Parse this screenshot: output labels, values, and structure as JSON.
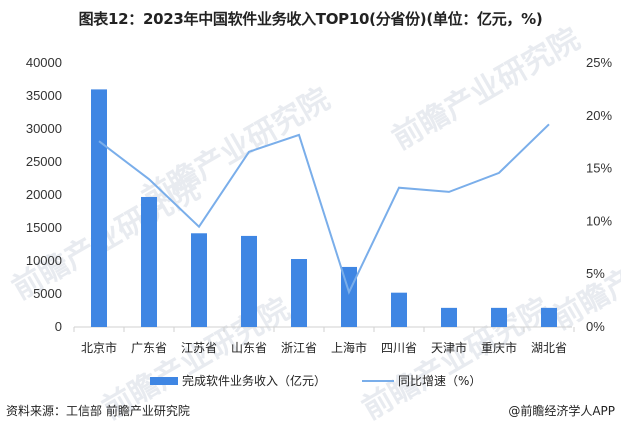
{
  "title": "图表12：2023年中国软件业务收入TOP10(分省份)(单位：亿元，%)",
  "legend": {
    "bar_label": "完成软件业务收入（亿元）",
    "line_label": "同比增速（%）"
  },
  "footer": {
    "source": "资料来源：工信部 前瞻产业研究院",
    "credit": "@前瞻经济学人APP"
  },
  "watermark": "前瞻产业研究院",
  "colors": {
    "bar": "#3f86e3",
    "line": "#7aaeea",
    "axis": "#d0d0d0"
  },
  "chart_data": {
    "type": "bar+line",
    "title": "图表12：2023年中国软件业务收入TOP10(分省份)(单位：亿元，%)",
    "categories": [
      "北京市",
      "广东省",
      "江苏省",
      "山东省",
      "浙江省",
      "上海市",
      "四川省",
      "天津市",
      "重庆市",
      "湖北省"
    ],
    "series": [
      {
        "name": "完成软件业务收入（亿元）",
        "type": "bar",
        "axis": "left",
        "values": [
          36000,
          19700,
          14200,
          13800,
          10300,
          9100,
          5200,
          2900,
          2900,
          2900
        ]
      },
      {
        "name": "同比增速（%）",
        "type": "line",
        "axis": "right",
        "values": [
          17.5,
          13.9,
          9.4,
          16.5,
          18.1,
          3.2,
          13.1,
          12.7,
          14.5,
          19.1
        ]
      }
    ],
    "y_left": {
      "ylim": [
        0,
        40000
      ],
      "ticks": [
        "0",
        "5000",
        "10000",
        "15000",
        "20000",
        "25000",
        "30000",
        "35000",
        "40000"
      ]
    },
    "y_right": {
      "ylim": [
        0,
        25
      ],
      "ticks": [
        "0%",
        "5%",
        "10%",
        "15%",
        "20%",
        "25%"
      ]
    },
    "xlabel": "",
    "ylabel": "",
    "grid": false,
    "legend_position": "bottom"
  }
}
